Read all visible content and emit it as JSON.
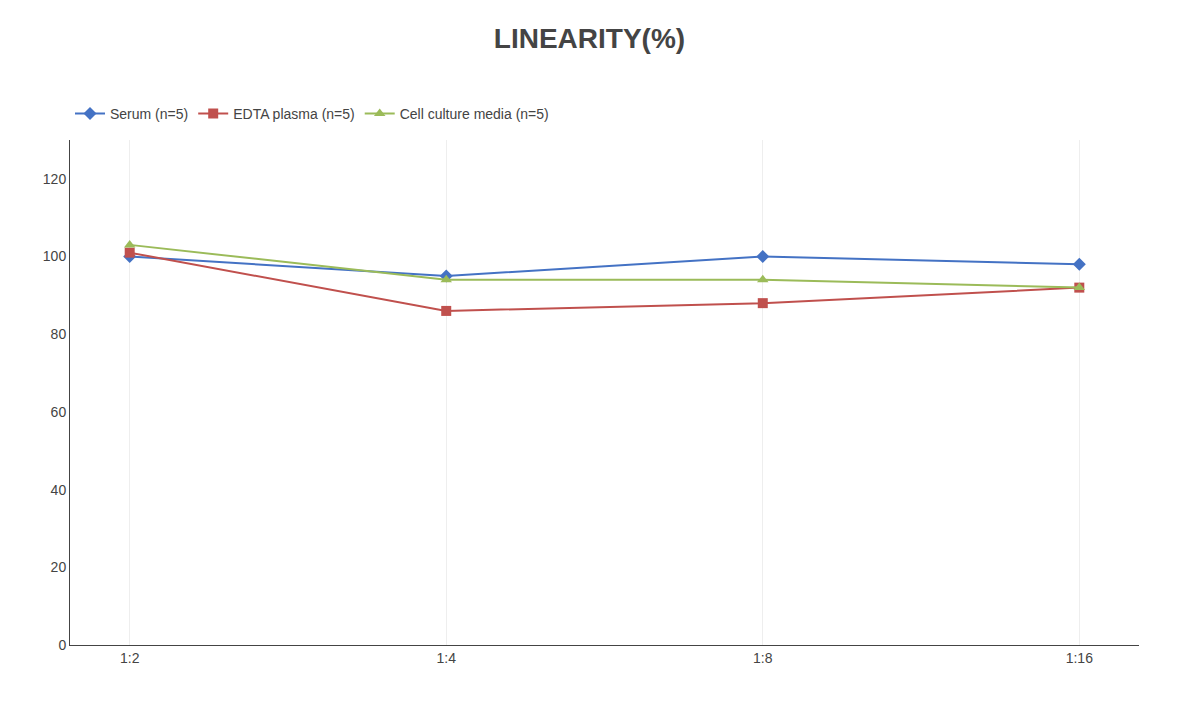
{
  "chart_data": {
    "type": "line",
    "title": "LINEARITY(%)",
    "categories": [
      "1:2",
      "1:4",
      "1:8",
      "1:16"
    ],
    "series": [
      {
        "name": "Serum (n=5)",
        "color": "#4472C4",
        "marker": "diamond",
        "values": [
          100,
          95,
          100,
          98
        ]
      },
      {
        "name": "EDTA plasma (n=5)",
        "color": "#C0504D",
        "marker": "square",
        "values": [
          101,
          86,
          88,
          92
        ]
      },
      {
        "name": "Cell culture media (n=5)",
        "color": "#9BBB59",
        "marker": "triangle-up",
        "values": [
          103,
          94,
          94,
          92
        ]
      }
    ],
    "ylim": [
      0,
      130
    ],
    "yticks": [
      0,
      20,
      40,
      60,
      80,
      100,
      120
    ],
    "grid": "x",
    "legend": "top"
  }
}
